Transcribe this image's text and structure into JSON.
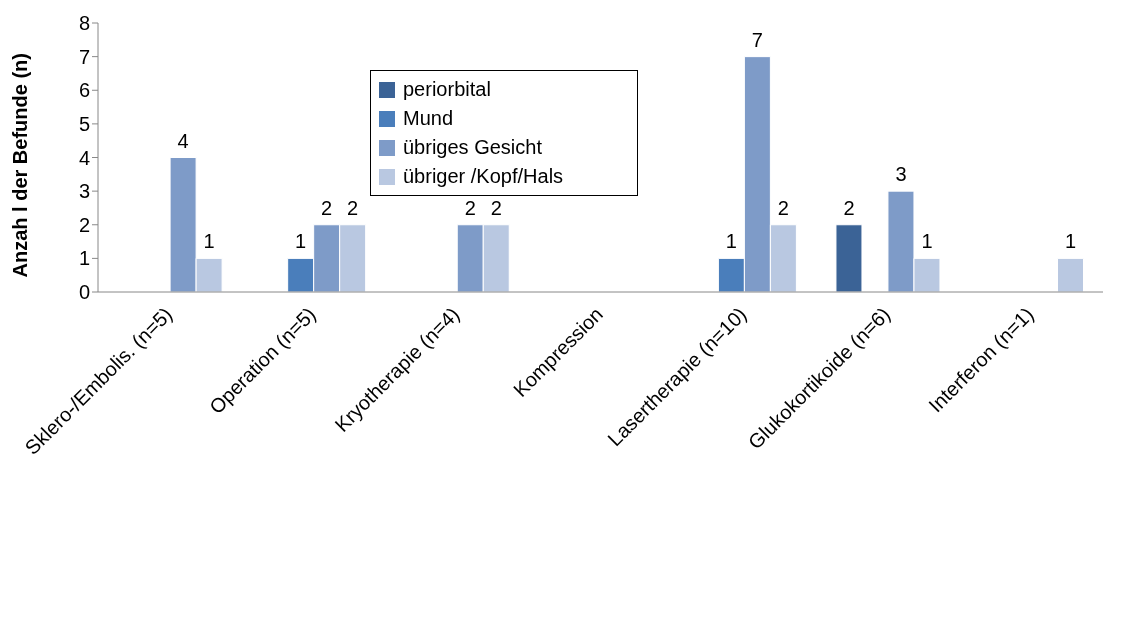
{
  "chart_data": {
    "type": "bar",
    "ylabel": "Anzah l der Befunde (n)",
    "categories": [
      "Sklero-/Embolis. (n=5)",
      "Operation (n=5)",
      "Kryotherapie (n=4)",
      "Kompression",
      "Lasertherapie (n=10)",
      "Glukokortikoide (n=6)",
      "Interferon (n=1)"
    ],
    "series": [
      {
        "name": "periorbital",
        "color": "#3b6396",
        "values": [
          null,
          null,
          null,
          null,
          null,
          2,
          null
        ]
      },
      {
        "name": "Mund",
        "color": "#4a7ebb",
        "values": [
          null,
          1,
          null,
          null,
          1,
          null,
          null
        ]
      },
      {
        "name": "übriges Gesicht",
        "color": "#7e9bc8",
        "values": [
          4,
          2,
          2,
          null,
          7,
          3,
          null
        ]
      },
      {
        "name": "übriger /Kopf/Hals",
        "color": "#b9c8e1",
        "values": [
          1,
          2,
          2,
          null,
          2,
          1,
          1
        ]
      }
    ],
    "ylim": [
      0,
      8
    ],
    "yticks": [
      0,
      1,
      2,
      3,
      4,
      5,
      6,
      7,
      8
    ],
    "data_labels": true,
    "legend": "top"
  }
}
